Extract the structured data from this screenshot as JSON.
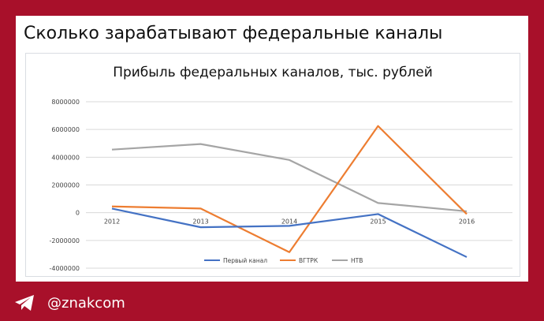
{
  "headline": "Сколько зарабатывают федеральные каналы",
  "footer": {
    "icon": "telegram-icon",
    "handle": "@znakcom"
  },
  "colors": {
    "background": "#a8102a",
    "card": "#ffffff"
  },
  "chart_data": {
    "type": "line",
    "title": "Прибыль федеральных каналов, тыс. рублей",
    "categories": [
      "2012",
      "2013",
      "2014",
      "2015",
      "2016"
    ],
    "y_ticks": [
      8000000,
      6000000,
      4000000,
      2000000,
      0,
      -2000000,
      -4000000
    ],
    "y_tick_labels": [
      "8000000",
      "6000000",
      "4000000",
      "2000000",
      "0",
      "-2000000",
      "-4000000"
    ],
    "ylim": [
      -4000000,
      8000000
    ],
    "grid": true,
    "legend_position": "bottom",
    "series": [
      {
        "name": "Первый канал",
        "color": "#4472c4",
        "values": [
          300000,
          -1050000,
          -950000,
          -100000,
          -3200000
        ]
      },
      {
        "name": "ВГТРК",
        "color": "#ed7d31",
        "values": [
          450000,
          300000,
          -2850000,
          6250000,
          -100000
        ]
      },
      {
        "name": "НТВ",
        "color": "#a5a5a5",
        "values": [
          4550000,
          4950000,
          3800000,
          700000,
          100000
        ]
      }
    ]
  }
}
